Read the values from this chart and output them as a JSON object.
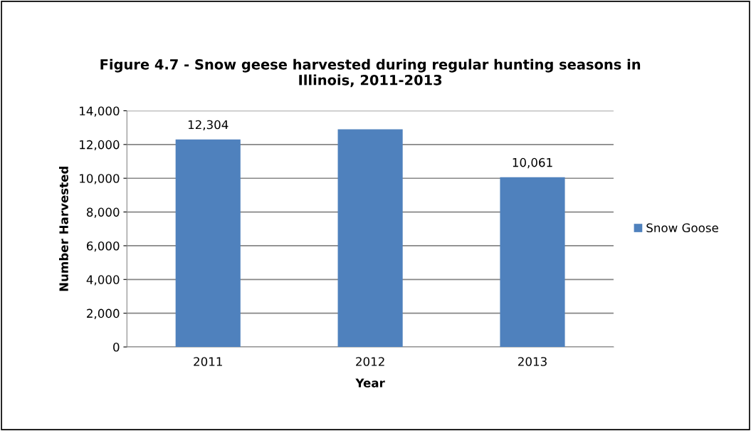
{
  "chart_data": {
    "type": "bar",
    "title": "Figure 4.7 - Snow geese harvested during regular hunting seasons in\nIllinois, 2011-2013",
    "xlabel": "Year",
    "ylabel": "Number Harvested",
    "categories": [
      "2011",
      "2012",
      "2013"
    ],
    "series": [
      {
        "name": "Snow Goose",
        "color": "#4f81bd",
        "values": [
          12304,
          12900,
          10061
        ],
        "value_labels": [
          "12,304",
          null,
          "10,061"
        ]
      }
    ],
    "ylim": [
      0,
      14000
    ],
    "yticks": [
      {
        "value": 0,
        "label": "0"
      },
      {
        "value": 2000,
        "label": "2,000"
      },
      {
        "value": 4000,
        "label": "4,000"
      },
      {
        "value": 6000,
        "label": "6,000"
      },
      {
        "value": 8000,
        "label": "8,000"
      },
      {
        "value": 10000,
        "label": "10,000"
      },
      {
        "value": 12000,
        "label": "12,000"
      },
      {
        "value": 14000,
        "label": "14,000"
      }
    ],
    "grid": "y",
    "legend": "right"
  }
}
